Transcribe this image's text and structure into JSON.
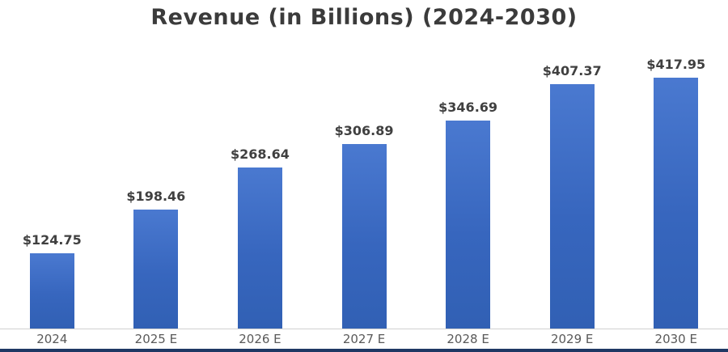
{
  "chart": {
    "title": "Revenue (in Billions) (2024-2030)"
  },
  "chart_data": {
    "type": "bar",
    "title": "Revenue (in Billions) (2024-2030)",
    "categories": [
      "2024",
      "2025 E",
      "2026 E",
      "2027 E",
      "2028 E",
      "2029 E",
      "2030 E"
    ],
    "values": [
      124.75,
      198.46,
      268.64,
      306.89,
      346.69,
      407.37,
      417.95
    ],
    "value_labels": [
      "$124.75",
      "$198.46",
      "$268.64",
      "$306.89",
      "$346.69",
      "$407.37",
      "$417.95"
    ],
    "xlabel": "",
    "ylabel": "",
    "ylim": [
      0,
      440
    ],
    "grid": false,
    "legend_position": "none",
    "bar_color": "#3766be",
    "axis_line_color": "#d0d0d0",
    "title_color": "#3b3b3b",
    "label_color": "#404040",
    "tick_label_color": "#595959",
    "bottom_border_color": "#1f3864"
  }
}
